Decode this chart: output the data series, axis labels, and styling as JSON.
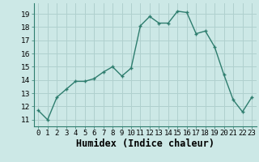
{
  "x": [
    0,
    1,
    2,
    3,
    4,
    5,
    6,
    7,
    8,
    9,
    10,
    11,
    12,
    13,
    14,
    15,
    16,
    17,
    18,
    19,
    20,
    21,
    22,
    23
  ],
  "y": [
    11.7,
    11.0,
    12.7,
    13.3,
    13.9,
    13.9,
    14.1,
    14.6,
    15.0,
    14.3,
    14.9,
    18.1,
    18.8,
    18.3,
    18.3,
    19.2,
    19.1,
    17.5,
    17.7,
    16.5,
    14.4,
    12.5,
    11.6,
    12.7
  ],
  "line_color": "#2e7d6e",
  "marker_color": "#2e7d6e",
  "bg_color": "#cce8e6",
  "grid_color": "#b0d0ce",
  "xlabel": "Humidex (Indice chaleur)",
  "ylim": [
    10.5,
    19.8
  ],
  "xlim": [
    -0.5,
    23.5
  ],
  "yticks": [
    11,
    12,
    13,
    14,
    15,
    16,
    17,
    18,
    19
  ],
  "xtick_labels": [
    "0",
    "1",
    "2",
    "3",
    "4",
    "5",
    "6",
    "7",
    "8",
    "9",
    "10",
    "11",
    "12",
    "13",
    "14",
    "15",
    "16",
    "17",
    "18",
    "19",
    "20",
    "21",
    "22",
    "23"
  ],
  "tick_fontsize": 6.5,
  "xlabel_fontsize": 8.5
}
